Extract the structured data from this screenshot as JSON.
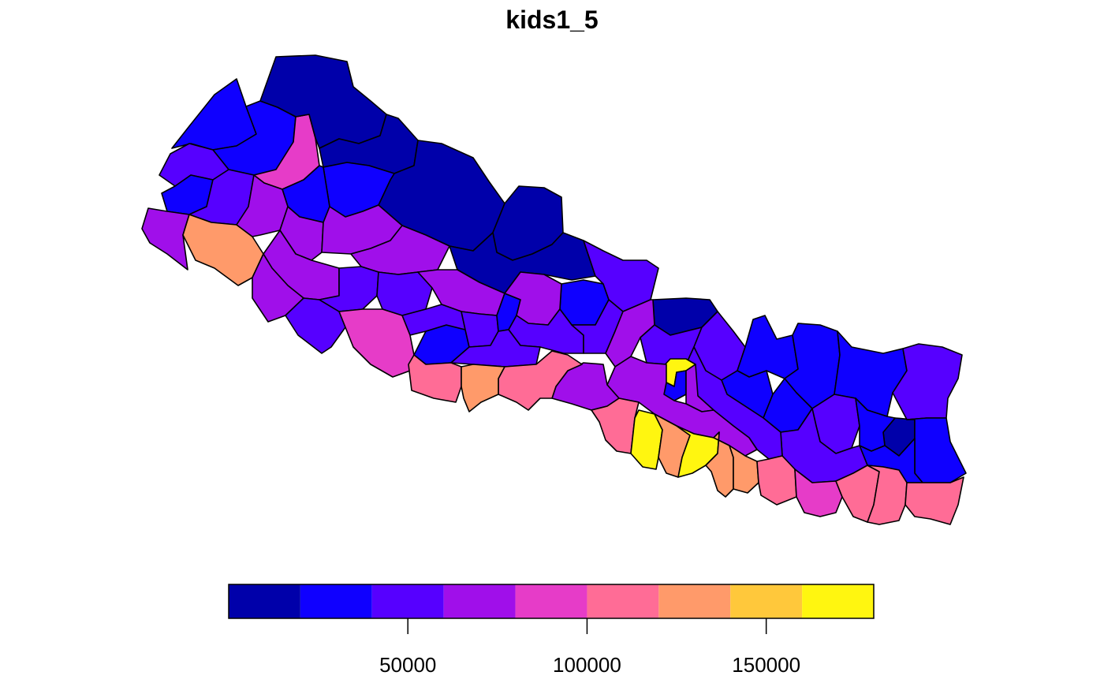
{
  "map": {
    "title": "kids1_5",
    "variable": "kids1_5",
    "palette": [
      "#0000AA",
      "#0F00FF",
      "#5600FF",
      "#A00FEA",
      "#E63CC8",
      "#FF6C96",
      "#FF9A6A",
      "#FFC83B",
      "#FFF610"
    ],
    "breaks": [
      0,
      20000,
      40000,
      60000,
      80000,
      100000,
      120000,
      140000,
      160000,
      180000
    ],
    "legend": {
      "ticks": [
        {
          "value": 50000,
          "label": "50000"
        },
        {
          "value": 100000,
          "label": "100000"
        },
        {
          "value": 150000,
          "label": "150000"
        }
      ]
    }
  }
}
